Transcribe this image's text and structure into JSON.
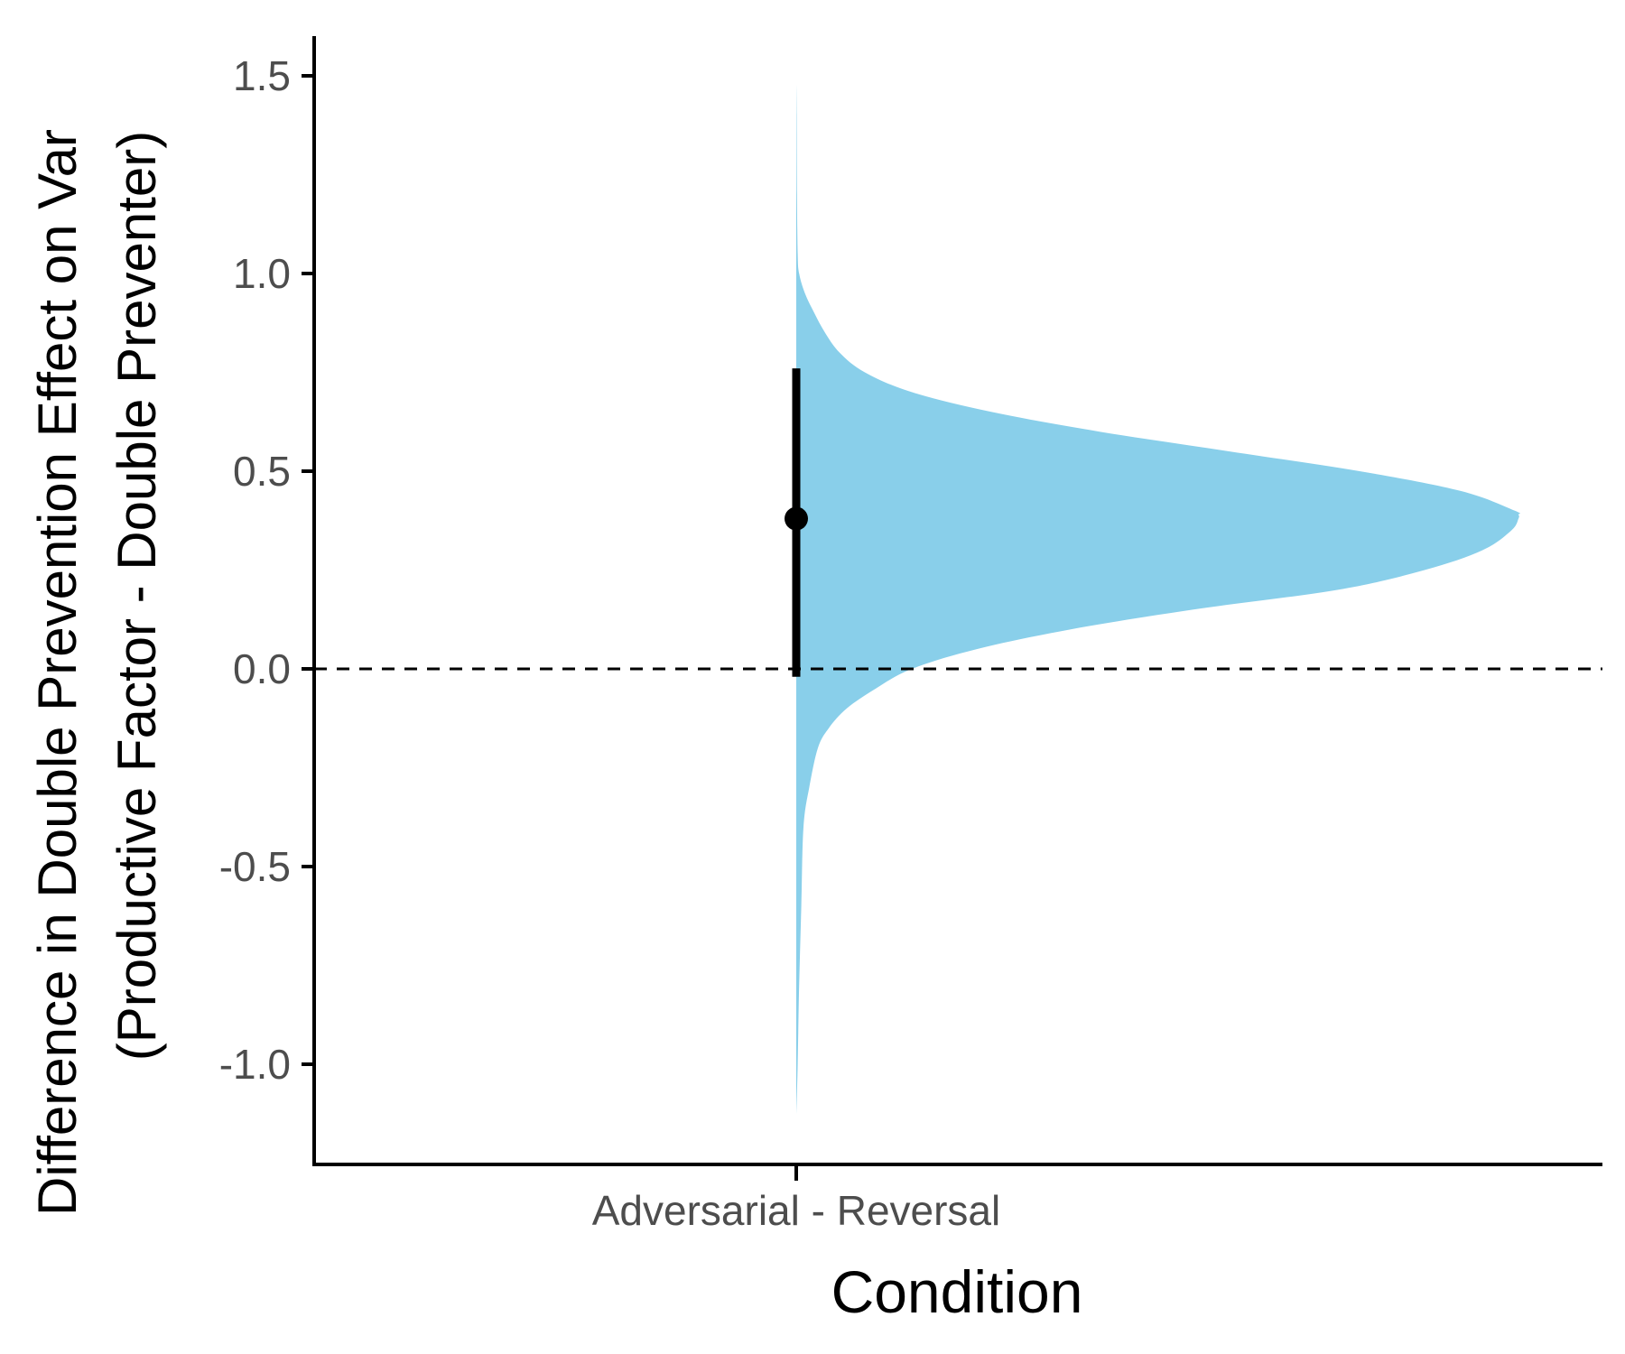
{
  "chart_data": {
    "type": "half-violin with point-interval",
    "xlabel": "Condition",
    "ylabel": "Difference in Double Prevention Effect on Var",
    "ylabel_line2": "(Productive Factor - Double Preventer)",
    "categories": [
      "Adversarial - Reversal"
    ],
    "ylim": [
      -1.25,
      1.6
    ],
    "yticks": [
      1.5,
      1.0,
      0.5,
      0.0,
      -0.5,
      -1.0
    ],
    "ytick_labels": [
      "1.5",
      "1.0",
      "0.5",
      "0.0",
      "-0.5",
      "-1.0"
    ],
    "reference_line": {
      "y": 0.0,
      "style": "dashed"
    },
    "point_estimate": {
      "category": "Adversarial - Reversal",
      "y": 0.38
    },
    "interval": {
      "low": -0.02,
      "high": 0.76
    },
    "density": {
      "y": [
        -1.13,
        -1.0,
        -0.8,
        -0.6,
        -0.4,
        -0.3,
        -0.2,
        -0.15,
        -0.1,
        -0.05,
        0.0,
        0.05,
        0.1,
        0.15,
        0.2,
        0.25,
        0.3,
        0.35,
        0.38,
        0.39,
        0.4,
        0.45,
        0.5,
        0.55,
        0.6,
        0.65,
        0.7,
        0.75,
        0.8,
        0.85,
        0.9,
        0.95,
        1.0,
        1.05,
        1.2,
        1.4,
        1.48
      ],
      "density": [
        0.0,
        0.002,
        0.004,
        0.007,
        0.01,
        0.018,
        0.03,
        0.045,
        0.07,
        0.11,
        0.16,
        0.25,
        0.38,
        0.55,
        0.75,
        0.87,
        0.95,
        0.99,
        1.0,
        1.0,
        0.995,
        0.92,
        0.78,
        0.6,
        0.42,
        0.27,
        0.16,
        0.095,
        0.06,
        0.04,
        0.025,
        0.012,
        0.004,
        0.002,
        0.001,
        0.0005,
        0.0
      ],
      "fill": "#89CFEA"
    },
    "grid": false,
    "legend": "none"
  }
}
